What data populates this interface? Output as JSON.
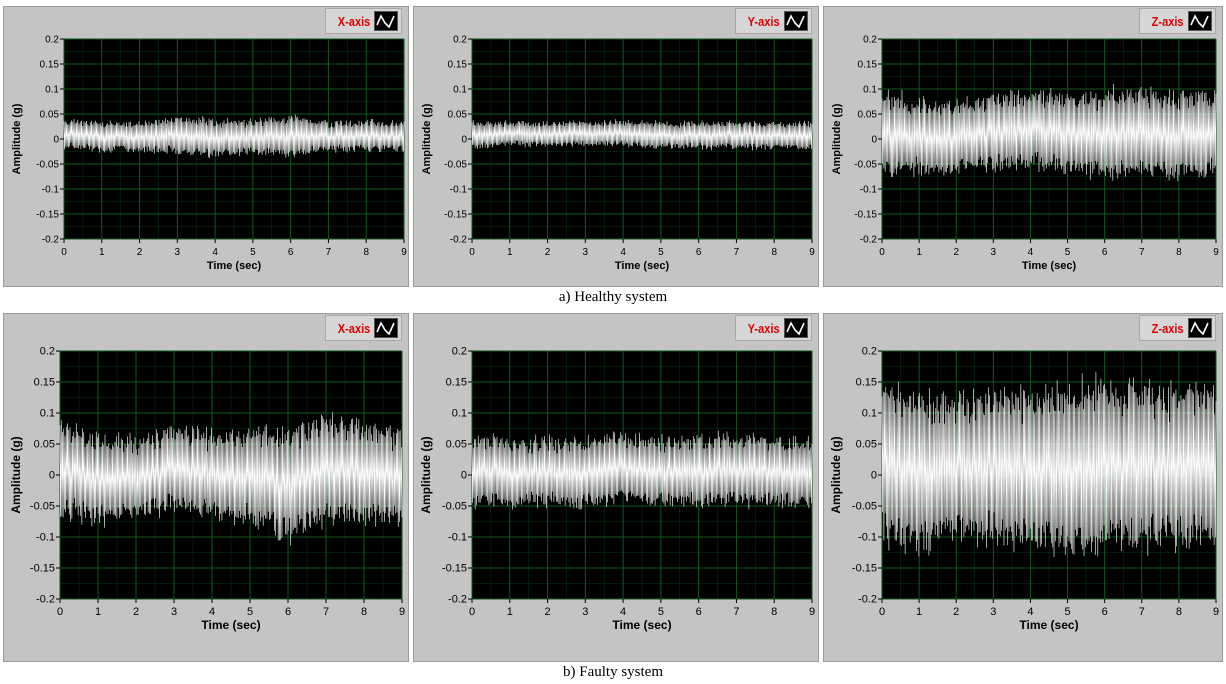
{
  "captions": {
    "healthy": "a) Healthy system",
    "faulty": "b) Faulty system"
  },
  "colors": {
    "plot_bg": "#000000",
    "grid": "#0e5a1e",
    "signal": "#ffffff",
    "legend_text": "#e00000",
    "panel": "#c4c4c4"
  },
  "icons": {
    "legend": "waveform-icon"
  },
  "chart_data": [
    {
      "type": "line",
      "group": "healthy",
      "legend": "X-axis",
      "xlabel": "Time (sec)",
      "ylabel": "Amplitude (g)",
      "xlim": [
        0,
        9
      ],
      "ylim": [
        -0.2,
        0.2
      ],
      "grid": true,
      "legend_position": "top-right",
      "x_ticks": [
        "0",
        "1",
        "2",
        "3",
        "4",
        "5",
        "6",
        "7",
        "8",
        "9"
      ],
      "y_ticks": [
        "0.2",
        "0.15",
        "0.1",
        "0.05",
        "0",
        "-0.05",
        "-0.1",
        "-0.15",
        "-0.2"
      ],
      "envelope": {
        "x": [
          0,
          1,
          2,
          3,
          4,
          5,
          6,
          7,
          8,
          9
        ],
        "upper": [
          0.04,
          0.035,
          0.035,
          0.045,
          0.04,
          0.04,
          0.05,
          0.035,
          0.04,
          0.035
        ],
        "lower": [
          -0.02,
          -0.025,
          -0.025,
          -0.03,
          -0.035,
          -0.03,
          -0.035,
          -0.025,
          -0.025,
          -0.025
        ]
      }
    },
    {
      "type": "line",
      "group": "healthy",
      "legend": "Y-axis",
      "xlabel": "Time (sec)",
      "ylabel": "Amplitude (g)",
      "xlim": [
        0,
        9
      ],
      "ylim": [
        -0.2,
        0.2
      ],
      "grid": true,
      "legend_position": "top-right",
      "x_ticks": [
        "0",
        "1",
        "2",
        "3",
        "4",
        "5",
        "6",
        "7",
        "8",
        "9"
      ],
      "y_ticks": [
        "0.2",
        "0.15",
        "0.1",
        "0.05",
        "0",
        "-0.05",
        "-0.1",
        "-0.15",
        "-0.2"
      ],
      "envelope": {
        "x": [
          0,
          1,
          2,
          3,
          4,
          5,
          6,
          7,
          8,
          9
        ],
        "upper": [
          0.035,
          0.035,
          0.035,
          0.035,
          0.04,
          0.035,
          0.035,
          0.035,
          0.035,
          0.035
        ],
        "lower": [
          -0.02,
          -0.015,
          -0.015,
          -0.015,
          -0.015,
          -0.02,
          -0.02,
          -0.02,
          -0.02,
          -0.02
        ]
      }
    },
    {
      "type": "line",
      "group": "healthy",
      "legend": "Z-axis",
      "xlabel": "Time (sec)",
      "ylabel": "Amplitude (g)",
      "xlim": [
        0,
        9
      ],
      "ylim": [
        -0.2,
        0.2
      ],
      "grid": true,
      "legend_position": "top-right",
      "x_ticks": [
        "0",
        "1",
        "2",
        "3",
        "4",
        "5",
        "6",
        "7",
        "8",
        "9"
      ],
      "y_ticks": [
        "0.2",
        "0.15",
        "0.1",
        "0.05",
        "0",
        "-0.05",
        "-0.1",
        "-0.15",
        "-0.2"
      ],
      "envelope": {
        "x": [
          0,
          1,
          2,
          3,
          4,
          5,
          6,
          7,
          8,
          9
        ],
        "upper": [
          0.1,
          0.08,
          0.08,
          0.09,
          0.1,
          0.09,
          0.1,
          0.1,
          0.1,
          0.1
        ],
        "lower": [
          -0.08,
          -0.07,
          -0.07,
          -0.06,
          -0.06,
          -0.07,
          -0.08,
          -0.07,
          -0.08,
          -0.07
        ]
      }
    },
    {
      "type": "line",
      "group": "faulty",
      "legend": "X-axis",
      "xlabel": "Time (sec)",
      "ylabel": "Amplitude (g)",
      "xlim": [
        0,
        9
      ],
      "ylim": [
        -0.2,
        0.2
      ],
      "grid": true,
      "legend_position": "top-right",
      "x_ticks": [
        "0",
        "1",
        "2",
        "3",
        "4",
        "5",
        "6",
        "7",
        "8",
        "9"
      ],
      "y_ticks": [
        "0.2",
        "0.15",
        "0.1",
        "0.05",
        "0",
        "-0.05",
        "-0.1",
        "-0.15",
        "-0.2"
      ],
      "envelope": {
        "x": [
          0,
          1,
          2,
          3,
          4,
          5,
          6,
          7,
          8,
          9
        ],
        "upper": [
          0.09,
          0.07,
          0.06,
          0.08,
          0.07,
          0.07,
          0.08,
          0.1,
          0.09,
          0.07
        ],
        "lower": [
          -0.07,
          -0.08,
          -0.07,
          -0.06,
          -0.07,
          -0.08,
          -0.11,
          -0.08,
          -0.08,
          -0.08
        ]
      }
    },
    {
      "type": "line",
      "group": "faulty",
      "legend": "Y-axis",
      "xlabel": "Time (sec)",
      "ylabel": "Amplitude (g)",
      "xlim": [
        0,
        9
      ],
      "ylim": [
        -0.2,
        0.2
      ],
      "grid": true,
      "legend_position": "top-right",
      "x_ticks": [
        "0",
        "1",
        "2",
        "3",
        "4",
        "5",
        "6",
        "7",
        "8",
        "9"
      ],
      "y_ticks": [
        "0.2",
        "0.15",
        "0.1",
        "0.05",
        "0",
        "-0.05",
        "-0.1",
        "-0.15",
        "-0.2"
      ],
      "envelope": {
        "x": [
          0,
          1,
          2,
          3,
          4,
          5,
          6,
          7,
          8,
          9
        ],
        "upper": [
          0.065,
          0.06,
          0.06,
          0.06,
          0.07,
          0.06,
          0.065,
          0.065,
          0.06,
          0.06
        ],
        "lower": [
          -0.05,
          -0.05,
          -0.05,
          -0.055,
          -0.045,
          -0.05,
          -0.05,
          -0.05,
          -0.05,
          -0.05
        ]
      }
    },
    {
      "type": "line",
      "group": "faulty",
      "legend": "Z-axis",
      "xlabel": "Time (sec)",
      "ylabel": "Amplitude (g)",
      "xlim": [
        0,
        9
      ],
      "ylim": [
        -0.2,
        0.2
      ],
      "grid": true,
      "legend_position": "top-right",
      "x_ticks": [
        "0",
        "1",
        "2",
        "3",
        "4",
        "5",
        "6",
        "7",
        "8",
        "9"
      ],
      "y_ticks": [
        "0.2",
        "0.15",
        "0.1",
        "0.05",
        "0",
        "-0.05",
        "-0.1",
        "-0.15",
        "-0.2"
      ],
      "envelope": {
        "x": [
          0,
          1,
          2,
          3,
          4,
          5,
          6,
          7,
          8,
          9
        ],
        "upper": [
          0.15,
          0.14,
          0.13,
          0.14,
          0.14,
          0.15,
          0.16,
          0.15,
          0.14,
          0.15
        ],
        "lower": [
          -0.11,
          -0.12,
          -0.11,
          -0.11,
          -0.12,
          -0.13,
          -0.12,
          -0.12,
          -0.12,
          -0.12
        ]
      }
    }
  ]
}
